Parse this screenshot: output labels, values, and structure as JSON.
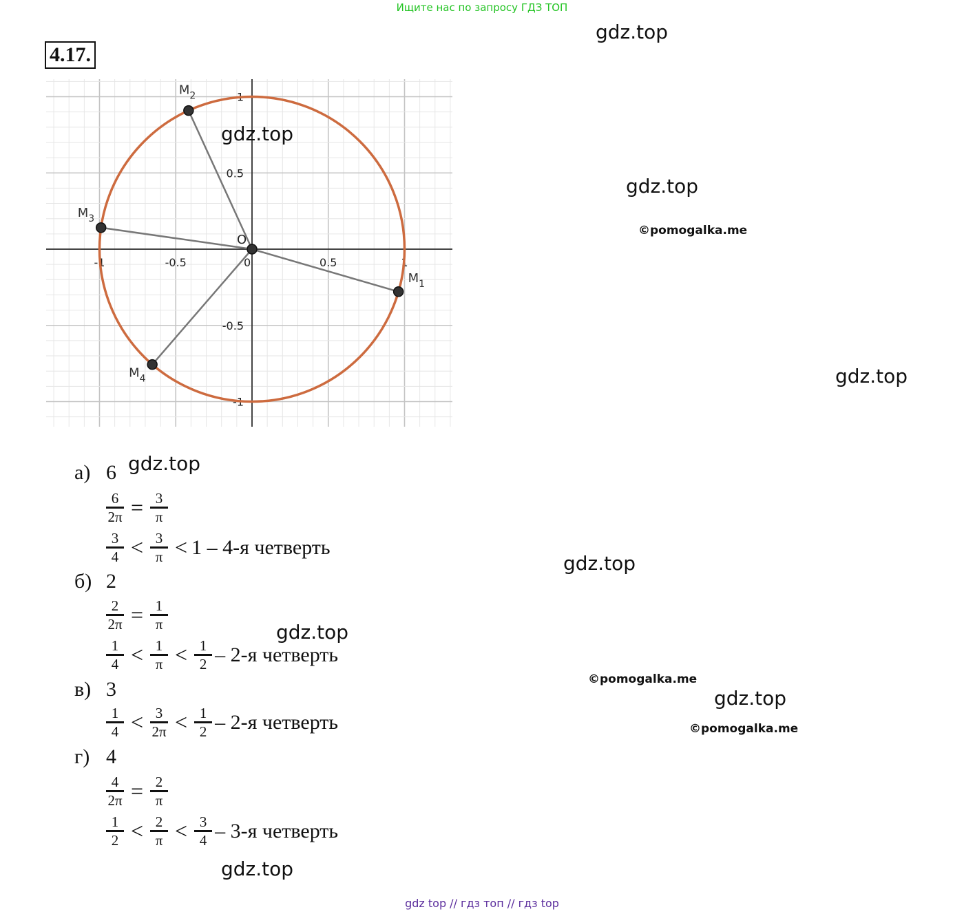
{
  "banner": "Ищите нас по запросу ГДЗ ТОП",
  "task_number": "4.17.",
  "watermarks": [
    "gdz.top",
    "gdz.top",
    "gdz.top",
    "gdz.top",
    "gdz.top",
    "gdz.top",
    "gdz.top",
    "gdz.top",
    "gdz.top"
  ],
  "credits": [
    "©pomogalka.me",
    "©pomogalka.me",
    "©pomogalka.me"
  ],
  "footer": "gdz top  //  гдз топ  //  гдз top",
  "graph": {
    "x_ticks": [
      "-1",
      "-0.5",
      "0",
      "0.5",
      "1"
    ],
    "y_ticks": [
      "1",
      "0.5",
      "-0.5",
      "-1"
    ],
    "origin_label": "O",
    "circle_color": "#cd6b3f",
    "segment_color": "#777777",
    "points": [
      {
        "name": "M",
        "sub": "1",
        "x": 0.96,
        "y": -0.279
      },
      {
        "name": "M",
        "sub": "2",
        "x": -0.416,
        "y": 0.909
      },
      {
        "name": "M",
        "sub": "3",
        "x": -0.99,
        "y": 0.141
      },
      {
        "name": "M",
        "sub": "4",
        "x": -0.654,
        "y": -0.757
      }
    ]
  },
  "solution": [
    {
      "label": "а)",
      "value": "6",
      "lines": [
        [
          {
            "frac": [
              "6",
              "2π"
            ]
          },
          {
            "op": "="
          },
          {
            "frac": [
              "3",
              "π"
            ]
          }
        ],
        [
          {
            "frac": [
              "3",
              "4"
            ]
          },
          {
            "op": "<"
          },
          {
            "frac": [
              "3",
              "π"
            ]
          },
          {
            "op": "<"
          },
          {
            "text": "1 – 4-я четверть"
          }
        ]
      ]
    },
    {
      "label": "б)",
      "value": "2",
      "lines": [
        [
          {
            "frac": [
              "2",
              "2π"
            ]
          },
          {
            "op": "="
          },
          {
            "frac": [
              "1",
              "π"
            ]
          }
        ],
        [
          {
            "frac": [
              "1",
              "4"
            ]
          },
          {
            "op": "<"
          },
          {
            "frac": [
              "1",
              "π"
            ]
          },
          {
            "op": "<"
          },
          {
            "frac": [
              "1",
              "2"
            ]
          },
          {
            "text": "– 2-я четверть"
          }
        ]
      ]
    },
    {
      "label": "в)",
      "value": "3",
      "lines": [
        [
          {
            "frac": [
              "1",
              "4"
            ]
          },
          {
            "op": "<"
          },
          {
            "frac": [
              "3",
              "2π"
            ]
          },
          {
            "op": "<"
          },
          {
            "frac": [
              "1",
              "2"
            ]
          },
          {
            "text": "– 2-я четверть"
          }
        ]
      ]
    },
    {
      "label": "г)",
      "value": "4",
      "lines": [
        [
          {
            "frac": [
              "4",
              "2π"
            ]
          },
          {
            "op": "="
          },
          {
            "frac": [
              "2",
              "π"
            ]
          }
        ],
        [
          {
            "frac": [
              "1",
              "2"
            ]
          },
          {
            "op": "<"
          },
          {
            "frac": [
              "2",
              "π"
            ]
          },
          {
            "op": "<"
          },
          {
            "frac": [
              "3",
              "4"
            ]
          },
          {
            "text": "– 3-я четверть"
          }
        ]
      ]
    }
  ]
}
